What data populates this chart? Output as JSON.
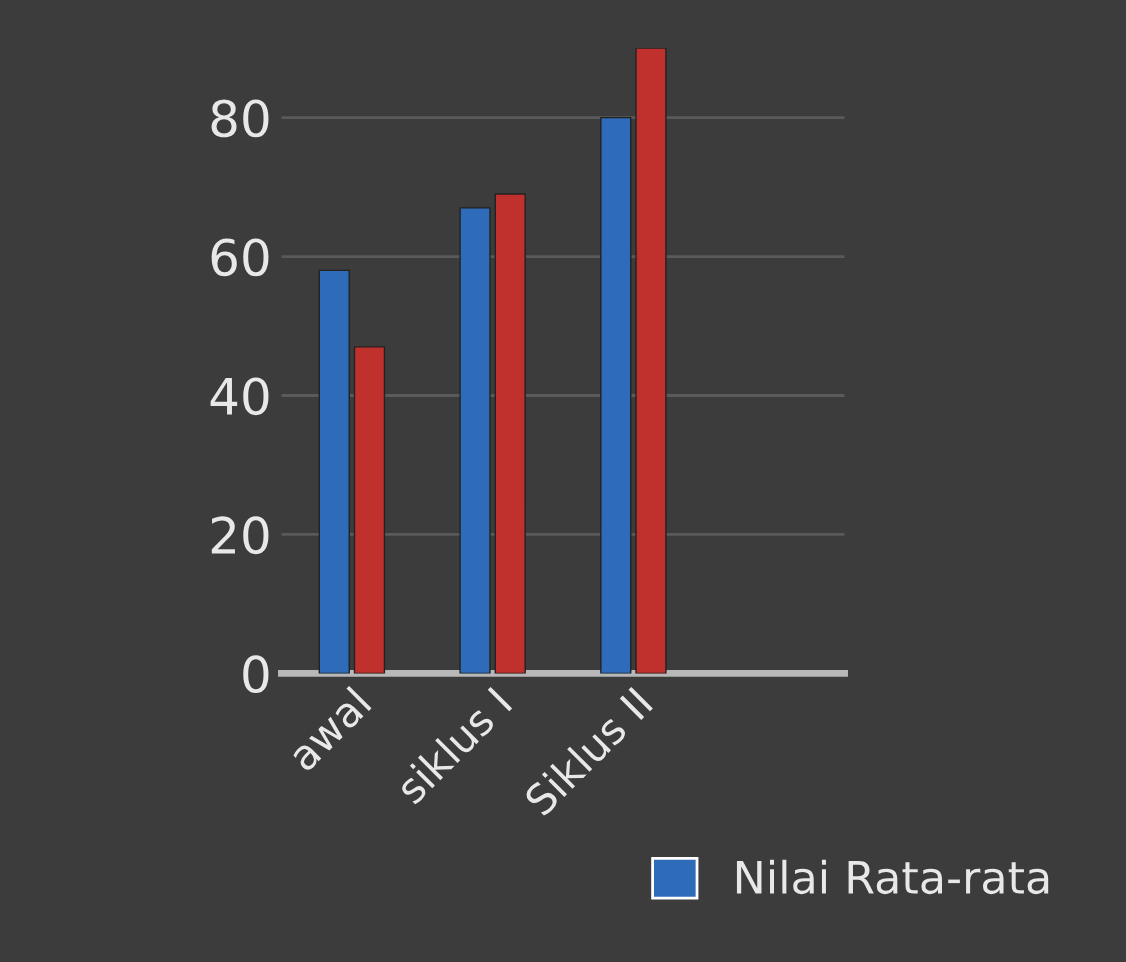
{
  "chart_data": {
    "type": "bar",
    "categories": [
      "awal",
      "siklus I",
      "Siklus II"
    ],
    "series": [
      {
        "name": "Nilai Rata-rata",
        "color": "#2e6bb8",
        "values": [
          58,
          67,
          80
        ]
      },
      {
        "color": "#c0302c",
        "values": [
          47,
          69,
          90
        ]
      }
    ],
    "ylim": [
      0,
      90
    ],
    "yticks": [
      0,
      20,
      40,
      60,
      80
    ],
    "grid": "y",
    "legend": "bottom right"
  }
}
